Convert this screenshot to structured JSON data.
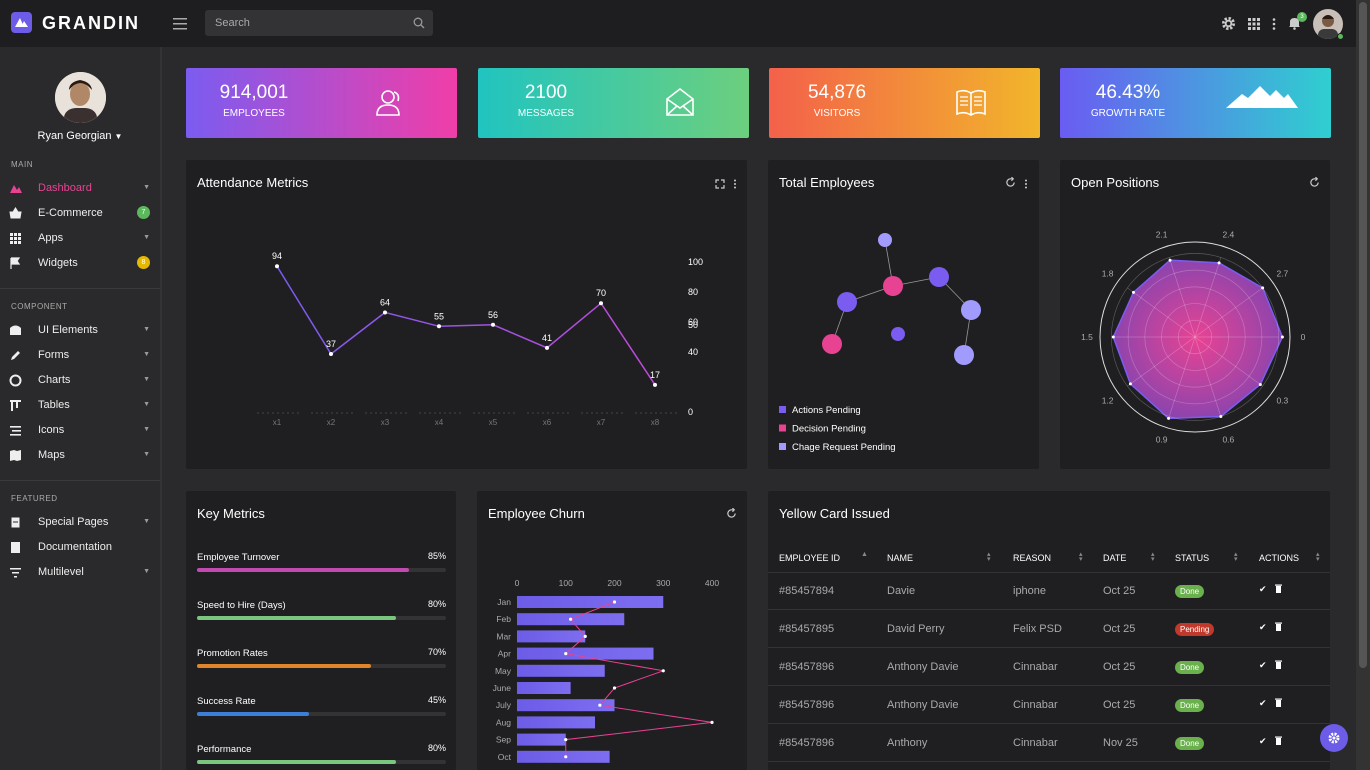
{
  "app": {
    "name": "GRANDIN"
  },
  "header": {
    "search_placeholder": "Search",
    "notification_count": "3"
  },
  "user": {
    "name": "Ryan Georgian"
  },
  "sidebar": {
    "sections": [
      {
        "label": "MAIN",
        "items": [
          {
            "label": "Dashboard",
            "icon": "dashboard-icon",
            "active": true
          },
          {
            "label": "E-Commerce",
            "icon": "basket-icon",
            "badge": "7",
            "badge_color": "#5cb85c"
          },
          {
            "label": "Apps",
            "icon": "apps-icon"
          },
          {
            "label": "Widgets",
            "icon": "flag-icon",
            "badge": "8",
            "badge_color": "#e6b800"
          }
        ]
      },
      {
        "label": "COMPONENT",
        "items": [
          {
            "label": "UI Elements",
            "icon": "ui-icon"
          },
          {
            "label": "Forms",
            "icon": "pencil-icon"
          },
          {
            "label": "Charts",
            "icon": "chart-icon"
          },
          {
            "label": "Tables",
            "icon": "table-icon"
          },
          {
            "label": "Icons",
            "icon": "icons-icon"
          },
          {
            "label": "Maps",
            "icon": "map-icon"
          }
        ]
      },
      {
        "label": "FEATURED",
        "items": [
          {
            "label": "Special Pages",
            "icon": "pages-icon"
          },
          {
            "label": "Documentation",
            "icon": "book-icon"
          },
          {
            "label": "Multilevel",
            "icon": "layers-icon"
          }
        ]
      }
    ]
  },
  "stats": [
    {
      "value": "914,001",
      "label": "EMPLOYEES",
      "icon": "users-icon",
      "gradient": [
        "#7b5cf0",
        "#f03ea8"
      ]
    },
    {
      "value": "2100",
      "label": "MESSAGES",
      "icon": "envelope-icon",
      "gradient": [
        "#21c4c0",
        "#6ccf7e"
      ]
    },
    {
      "value": "54,876",
      "label": "VISITORS",
      "icon": "book-open-icon",
      "gradient": [
        "#f3614a",
        "#f2b52b"
      ]
    },
    {
      "value": "46.43%",
      "label": "GROWTH RATE",
      "icon": "mountain-icon",
      "gradient": [
        "#6a5cf2",
        "#2fcfd0"
      ]
    }
  ],
  "panels": {
    "attendance": {
      "title": "Attendance Metrics"
    },
    "total_employees": {
      "title": "Total Employees",
      "legend": [
        {
          "label": "Actions Pending",
          "color": "#7b5cf0"
        },
        {
          "label": "Decision Pending",
          "color": "#e84393"
        },
        {
          "label": "Chage Request Pending",
          "color": "#a29bfe"
        }
      ]
    },
    "open_positions": {
      "title": "Open Positions"
    },
    "key_metrics": {
      "title": "Key Metrics",
      "items": [
        {
          "name": "Employee Turnover",
          "value": "85%",
          "pct": 0.85,
          "color": "#c04ab0"
        },
        {
          "name": "Speed to Hire (Days)",
          "value": "80%",
          "pct": 0.8,
          "color": "#7bc67e"
        },
        {
          "name": "Promotion Rates",
          "value": "70%",
          "pct": 0.7,
          "color": "#e0852b"
        },
        {
          "name": "Success Rate",
          "value": "45%",
          "pct": 0.45,
          "color": "#3d7fd8"
        },
        {
          "name": "Performance",
          "value": "80%",
          "pct": 0.8,
          "color": "#7bc67e"
        }
      ]
    },
    "employee_churn": {
      "title": "Employee Churn"
    },
    "yellow_card": {
      "title": "Yellow Card Issued",
      "columns": [
        "EMPLOYEE ID",
        "NAME",
        "REASON",
        "DATE",
        "STATUS",
        "ACTIONS"
      ],
      "rows": [
        {
          "id": "#85457894",
          "name": "Davie",
          "reason": "iphone",
          "date": "Oct 25",
          "status": "Done"
        },
        {
          "id": "#85457895",
          "name": "David Perry",
          "reason": "Felix PSD",
          "date": "Oct 25",
          "status": "Pending"
        },
        {
          "id": "#85457896",
          "name": "Anthony Davie",
          "reason": "Cinnabar",
          "date": "Oct 25",
          "status": "Done"
        },
        {
          "id": "#85457896",
          "name": "Anthony Davie",
          "reason": "Cinnabar",
          "date": "Oct 25",
          "status": "Done"
        },
        {
          "id": "#85457896",
          "name": "Anthony",
          "reason": "Cinnabar",
          "date": "Nov 25",
          "status": "Done"
        }
      ]
    }
  },
  "chart_data": [
    {
      "type": "line",
      "categories": [
        "x1",
        "x2",
        "x3",
        "x4",
        "x5",
        "x6",
        "x7",
        "x8"
      ],
      "values": [
        94,
        37,
        64,
        55,
        56,
        41,
        70,
        17
      ],
      "y_axis_ticks": [
        "0",
        "40",
        "50",
        "60",
        "80",
        "100"
      ]
    },
    {
      "type": "scatter",
      "points": [
        {
          "color": "#7b5cf0"
        },
        {
          "color": "#e84393"
        },
        {
          "color": "#a29bfe"
        },
        {
          "color": "#7b5cf0"
        },
        {
          "color": "#a29bfe"
        },
        {
          "color": "#7b5cf0"
        },
        {
          "color": "#a29bfe"
        },
        {
          "color": "#e84393"
        }
      ]
    },
    {
      "type": "radar",
      "axis_labels": [
        "0",
        "0.3",
        "0.6",
        "0.9",
        "1.2",
        "1.5",
        "1.8",
        "2.1",
        "2.4",
        "2.7"
      ]
    },
    {
      "type": "bar",
      "orientation": "horizontal",
      "categories": [
        "Jan",
        "Feb",
        "Mar",
        "Apr",
        "May",
        "June",
        "July",
        "Aug",
        "Sep",
        "Oct"
      ],
      "values": [
        300,
        220,
        140,
        280,
        180,
        110,
        200,
        160,
        100,
        190
      ],
      "line_values": [
        200,
        110,
        140,
        100,
        300,
        200,
        170,
        400,
        100,
        100
      ],
      "x_ticks": [
        "0",
        "100",
        "200",
        "300",
        "400"
      ],
      "xlim": [
        0,
        400
      ]
    }
  ]
}
